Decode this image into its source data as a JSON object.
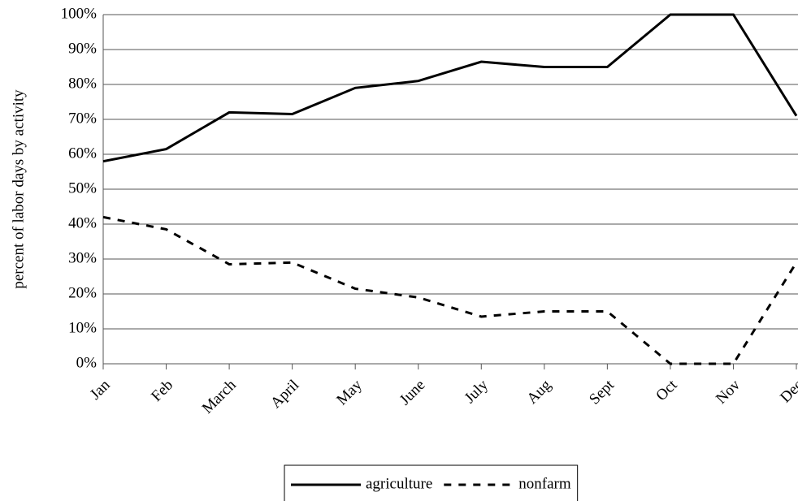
{
  "chart_data": {
    "type": "line",
    "y_axis_label": "percent of labor days by activity",
    "categories": [
      "Jan",
      "Feb",
      "March",
      "April",
      "May",
      "June",
      "July",
      "Aug",
      "Sept",
      "Oct",
      "Nov",
      "Dec"
    ],
    "series": [
      {
        "name": "agriculture",
        "color": "#000000",
        "line_style": "solid",
        "values": [
          58,
          61.5,
          72,
          71.5,
          79,
          81,
          86.5,
          85,
          85,
          100,
          100,
          71
        ]
      },
      {
        "name": "nonfarm",
        "color": "#000000",
        "line_style": "dashed",
        "values": [
          42,
          38.5,
          28.5,
          29,
          21.5,
          19,
          13.5,
          15,
          15,
          0,
          0,
          29
        ]
      }
    ],
    "ylim": [
      0,
      100
    ],
    "yticks": [
      {
        "value": 0,
        "label": "0%"
      },
      {
        "value": 10,
        "label": "10%"
      },
      {
        "value": 20,
        "label": "20%"
      },
      {
        "value": 30,
        "label": "30%"
      },
      {
        "value": 40,
        "label": "40%"
      },
      {
        "value": 50,
        "label": "50%"
      },
      {
        "value": 60,
        "label": "60%"
      },
      {
        "value": 70,
        "label": "70%"
      },
      {
        "value": 80,
        "label": "80%"
      },
      {
        "value": 90,
        "label": "90%"
      },
      {
        "value": 100,
        "label": "100%"
      }
    ],
    "grid": true,
    "legend_position": "bottom"
  }
}
